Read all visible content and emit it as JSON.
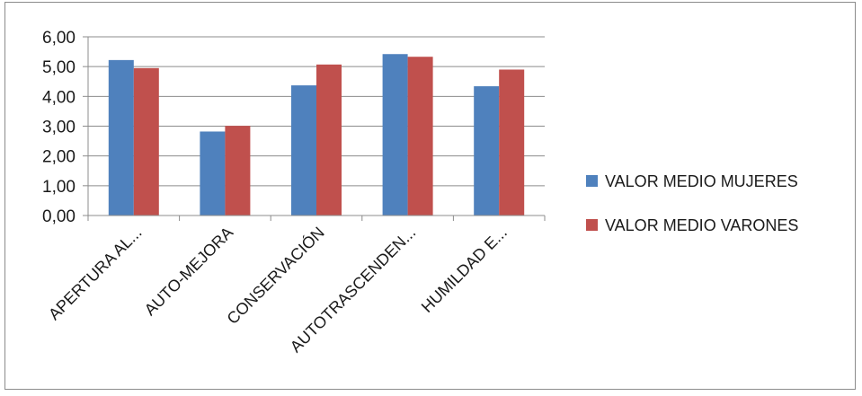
{
  "chart_data": {
    "type": "bar",
    "categories": [
      "APERTURA AL...",
      "AUTO-MEJORA",
      "CONSERVACIÓN",
      "AUTOTRASCENDEN...",
      "HUMILDAD E..."
    ],
    "series": [
      {
        "name": "VALOR MEDIO MUJERES",
        "color": "#4f81bd",
        "values": [
          5.22,
          2.82,
          4.37,
          5.42,
          4.34
        ]
      },
      {
        "name": "VALOR MEDIO VARONES",
        "color": "#c0504d",
        "values": [
          4.95,
          3.01,
          5.07,
          5.33,
          4.9
        ]
      }
    ],
    "ylim": [
      0,
      6
    ],
    "yticks": [
      "0,00",
      "1,00",
      "2,00",
      "3,00",
      "4,00",
      "5,00",
      "6,00"
    ],
    "grid": true,
    "legend_position": "right"
  }
}
